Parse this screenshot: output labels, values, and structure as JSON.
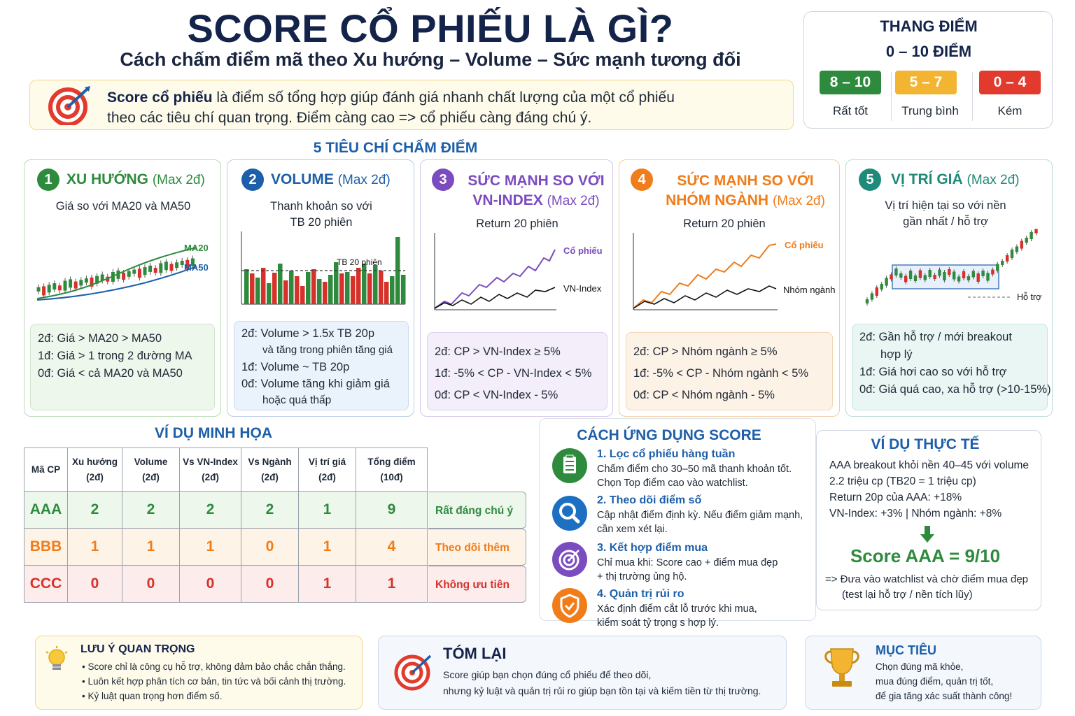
{
  "header": {
    "title": "SCORE CỔ PHIẾU LÀ GÌ?",
    "subtitle": "Cách chấm điểm mã theo Xu hướng – Volume – Sức mạnh tương đối"
  },
  "intro": {
    "bold": "Score cổ phiếu",
    "text1": " là điểm số tổng hợp giúp đánh giá nhanh chất lượng của một cổ phiếu",
    "text2": "theo các tiêu chí quan trọng. Điểm càng cao => cổ phiếu càng đáng chú ý.",
    "icon": "target-icon"
  },
  "scale": {
    "title": "THANG ĐIỂM",
    "range": "0 – 10 ĐIỂM",
    "levels": [
      {
        "range": "8 – 10",
        "label": "Rất tốt",
        "color": "#2e8b3e"
      },
      {
        "range": "5 – 7",
        "label": "Trung bình",
        "color": "#f2b431"
      },
      {
        "range": "0 – 4",
        "label": "Kém",
        "color": "#e23b2e"
      }
    ]
  },
  "criteria_heading": "5 TIÊU CHÍ CHẤM ĐIỂM",
  "criteria": [
    {
      "num": "1",
      "title": "XU HƯỚNG",
      "max": "(Max 2đ)",
      "color": "#2e8b3e",
      "sub1": "Giá so với MA20 và MA50",
      "sub2": "",
      "chart_labels": [
        "MA20",
        "MA50"
      ],
      "rules": [
        "2đ:  Giá > MA20 > MA50",
        "1đ:  Giá > 1 trong 2 đường MA",
        "0đ:  Giá < cả MA20 và MA50"
      ]
    },
    {
      "num": "2",
      "title": "VOLUME",
      "max": "(Max 2đ)",
      "color": "#1d5fa8",
      "sub1": "Thanh khoản so với",
      "sub2": "TB 20 phiên",
      "chart_labels": [
        "TB 20 phiên"
      ],
      "rules": [
        "2đ:  Volume > 1.5x TB 20p",
        "và tăng trong phiên tăng giá",
        "1đ:  Volume ~ TB 20p",
        "0đ:  Volume tăng khi giảm giá",
        "hoặc quá thấp"
      ]
    },
    {
      "num": "3",
      "title": "SỨC MẠNH SO VỚI",
      "title2": "VN-INDEX",
      "max": "(Max 2đ)",
      "color": "#7b4cbf",
      "sub1": "Return 20 phiên",
      "sub2": "",
      "chart_labels": [
        "Cổ phiếu",
        "VN-Index"
      ],
      "rules": [
        "2đ:  CP > VN-Index ≥ 5%",
        "1đ:  -5% < CP - VN-Index < 5%",
        "0đ:  CP < VN-Index - 5%"
      ]
    },
    {
      "num": "4",
      "title": "SỨC MẠNH SO VỚI",
      "title2": "NHÓM NGÀNH",
      "max": "(Max 2đ)",
      "color": "#f07c1a",
      "sub1": "Return 20 phiên",
      "sub2": "",
      "chart_labels": [
        "Cổ phiếu",
        "Nhóm ngành"
      ],
      "rules": [
        "2đ:  CP > Nhóm ngành ≥ 5%",
        "1đ:  -5% < CP - Nhóm ngành < 5%",
        "0đ:  CP < Nhóm ngành - 5%"
      ]
    },
    {
      "num": "5",
      "title": "VỊ TRÍ GIÁ",
      "max": "(Max 2đ)",
      "color": "#1e8a7a",
      "sub1": "Vị trí hiện tại so với nền",
      "sub2": "gần nhất / hỗ trợ",
      "chart_labels": [
        "Hỗ trợ"
      ],
      "rules": [
        "2đ:  Gần hỗ trợ / mới breakout",
        "hợp lý",
        "1đ:  Giá hơi cao so với hỗ trợ",
        "0đ:  Giá quá cao, xa hỗ trợ (>10-15%)"
      ]
    }
  ],
  "example": {
    "heading": "VÍ DỤ MINH HỌA",
    "headers": [
      [
        "Mã CP",
        ""
      ],
      [
        "Xu hướng",
        "(2đ)"
      ],
      [
        "Volume",
        "(2đ)"
      ],
      [
        "Vs VN-Index",
        "(2đ)"
      ],
      [
        "Vs Ngành",
        "(2đ)"
      ],
      [
        "Vị trí giá",
        "(2đ)"
      ],
      [
        "Tổng điểm",
        "(10đ)"
      ]
    ],
    "rows": [
      {
        "code": "AAA",
        "scores": [
          "2",
          "2",
          "2",
          "2",
          "1"
        ],
        "total": "9",
        "note": "Rất đáng chú ý",
        "color": "#2e8b3e",
        "bg": "#eef7ec"
      },
      {
        "code": "BBB",
        "scores": [
          "1",
          "1",
          "1",
          "0",
          "1"
        ],
        "total": "4",
        "note": "Theo dõi thêm",
        "color": "#f07c1a",
        "bg": "#fdf3e6"
      },
      {
        "code": "CCC",
        "scores": [
          "0",
          "0",
          "0",
          "0",
          "1"
        ],
        "total": "1",
        "note": "Không ưu tiên",
        "color": "#d6312a",
        "bg": "#fcecec"
      }
    ]
  },
  "application": {
    "heading": "CÁCH ỨNG DỤNG SCORE",
    "items": [
      {
        "title": "1. Lọc cổ phiếu hàng tuần",
        "l1": "Chấm điểm cho 30–50 mã thanh khoản tốt.",
        "l2": "Chọn Top điểm cao vào watchlist.",
        "icon": "checklist-icon",
        "color": "#2e8b3e"
      },
      {
        "title": "2. Theo dõi điểm số",
        "l1": "Cập nhật điểm định kỳ. Nếu điểm giảm mạnh,",
        "l2": "cần xem xét lại.",
        "icon": "search-icon",
        "color": "#1d6fc2"
      },
      {
        "title": "3. Kết hợp điểm mua",
        "l1": "Chỉ mua khi: Score cao + điểm mua đẹp",
        "l2": "+ thị trường ủng hộ.",
        "icon": "target-icon",
        "color": "#7b4cbf"
      },
      {
        "title": "4. Quản trị rủi ro",
        "l1": "Xác định điểm cắt lỗ trước khi mua,",
        "l2": "kiểm soát tỷ trọng s hợp lý.",
        "icon": "shield-icon",
        "color": "#f07c1a"
      }
    ]
  },
  "real_example": {
    "heading": "VÍ DỤ THỰC TẾ",
    "lines": [
      "AAA breakout khỏi nền 40–45 với volume",
      "2.2 triệu cp (TB20 = 1 triệu cp)",
      "Return 20p của AAA: +18%",
      "VN-Index: +3% | Nhóm ngành: +8%"
    ],
    "result": "Score AAA = 9/10",
    "conclusion1": "=> Đưa vào watchlist và chờ điểm mua đẹp",
    "conclusion2": "(test lại hỗ trợ / nền tích lũy)"
  },
  "notes": {
    "heading": "LƯU Ý QUAN TRỌNG",
    "items": [
      "• Score chỉ là công cụ hỗ trợ, không đảm bảo chắc chắn thắng.",
      "• Luôn kết hợp phân tích cơ bản, tin tức và bối cảnh thị trường.",
      "• Kỷ luật quan trọng hơn điểm số."
    ],
    "icon": "lightbulb-icon"
  },
  "summary": {
    "heading": "TÓM LẠI",
    "l1": "Score giúp bạn chọn đúng cổ phiếu để theo dõi,",
    "l2": "nhưng kỷ luật và quản trị rủi ro giúp bạn tồn tại và kiếm tiền từ thị trường.",
    "icon": "target-icon"
  },
  "goal": {
    "heading": "MỤC TIÊU",
    "l1": "Chọn đúng mã khỏe,",
    "l2": "mua đúng điểm, quản trị tốt,",
    "l3": "để gia tăng xác suất thành công!",
    "icon": "trophy-icon"
  }
}
